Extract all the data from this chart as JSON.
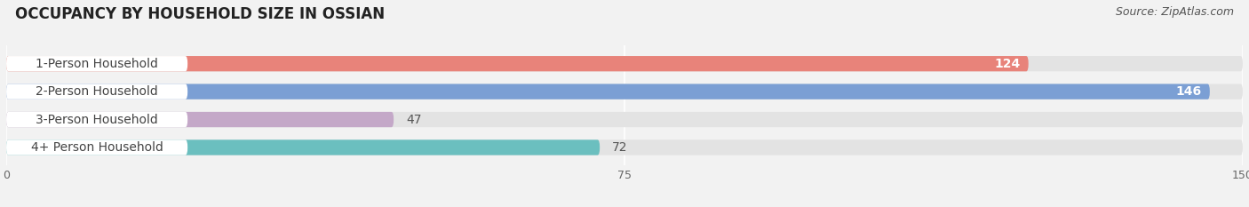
{
  "title": "OCCUPANCY BY HOUSEHOLD SIZE IN OSSIAN",
  "source": "Source: ZipAtlas.com",
  "categories": [
    "1-Person Household",
    "2-Person Household",
    "3-Person Household",
    "4+ Person Household"
  ],
  "values": [
    124,
    146,
    47,
    72
  ],
  "bar_colors": [
    "#E8837A",
    "#7B9FD4",
    "#C4A8C8",
    "#6BBFBF"
  ],
  "xlim": [
    0,
    150
  ],
  "xticks": [
    0,
    75,
    150
  ],
  "background_color": "#f2f2f2",
  "bar_bg_color": "#e3e3e3",
  "label_bg_color": "#ffffff",
  "title_fontsize": 12,
  "label_fontsize": 10,
  "value_fontsize": 10
}
